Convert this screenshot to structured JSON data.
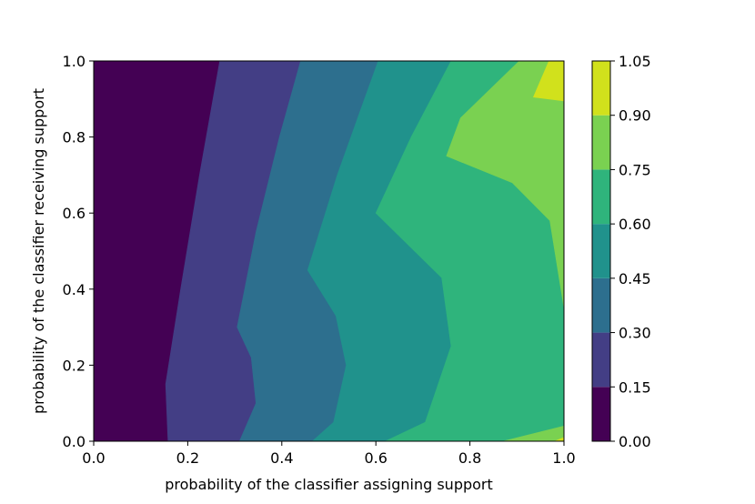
{
  "chart_data": {
    "type": "contourf",
    "xlabel": "probability of the classifier assigning support",
    "ylabel": "probability of the classifier receiving support",
    "xlim": [
      0.0,
      1.0
    ],
    "ylim": [
      0.0,
      1.0
    ],
    "x_ticks": [
      "0.0",
      "0.2",
      "0.4",
      "0.6",
      "0.8",
      "1.0"
    ],
    "y_ticks": [
      "0.0",
      "0.2",
      "0.4",
      "0.6",
      "0.8",
      "1.0"
    ],
    "colormap": "viridis",
    "grid": false,
    "colorbar": {
      "levels": [
        0.0,
        0.15,
        0.3,
        0.45,
        0.6,
        0.75,
        0.9,
        1.05
      ],
      "tick_labels": [
        "0.00",
        "0.15",
        "0.30",
        "0.45",
        "0.60",
        "0.75",
        "0.90",
        "1.05"
      ],
      "colors": [
        "#440154",
        "#433e85",
        "#2d6f8e",
        "#20928c",
        "#2fb47c",
        "#7ad151",
        "#d1e11c"
      ]
    },
    "contour_boundaries": [
      {
        "level": 0.15,
        "points": [
          [
            0.158,
            0.0
          ],
          [
            0.153,
            0.15
          ],
          [
            0.185,
            0.4
          ],
          [
            0.225,
            0.7
          ],
          [
            0.268,
            1.0
          ]
        ]
      },
      {
        "level": 0.3,
        "points": [
          [
            0.31,
            0.0
          ],
          [
            0.345,
            0.1
          ],
          [
            0.335,
            0.22
          ],
          [
            0.305,
            0.3
          ],
          [
            0.345,
            0.55
          ],
          [
            0.395,
            0.8
          ],
          [
            0.44,
            1.0
          ]
        ]
      },
      {
        "level": 0.45,
        "points": [
          [
            0.465,
            0.0
          ],
          [
            0.51,
            0.05
          ],
          [
            0.537,
            0.2
          ],
          [
            0.515,
            0.33
          ],
          [
            0.455,
            0.45
          ],
          [
            0.518,
            0.7
          ],
          [
            0.57,
            0.88
          ],
          [
            0.605,
            1.0
          ]
        ]
      },
      {
        "level": 0.6,
        "points": [
          [
            0.62,
            0.0
          ],
          [
            0.705,
            0.05
          ],
          [
            0.76,
            0.25
          ],
          [
            0.74,
            0.43
          ],
          [
            0.6,
            0.6
          ],
          [
            0.675,
            0.8
          ],
          [
            0.76,
            1.0
          ]
        ]
      },
      {
        "level": 0.75,
        "points": [
          [
            0.87,
            0.0
          ],
          [
            1.0,
            0.04
          ],
          [
            1.0,
            0.35
          ],
          [
            0.97,
            0.58
          ],
          [
            0.89,
            0.68
          ],
          [
            0.75,
            0.75
          ],
          [
            0.78,
            0.85
          ],
          [
            0.905,
            1.0
          ]
        ]
      },
      {
        "level": 0.9,
        "points": [
          [
            0.98,
            0.0
          ],
          [
            1.0,
            0.01
          ],
          [
            1.0,
            0.895
          ],
          [
            0.935,
            0.905
          ],
          [
            0.968,
            1.0
          ]
        ]
      }
    ]
  }
}
